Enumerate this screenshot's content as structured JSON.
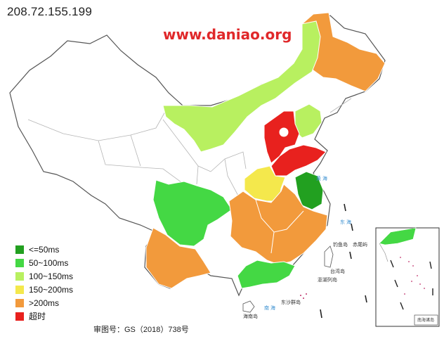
{
  "header": {
    "ip_address": "208.72.155.199",
    "watermark": "www.daniao.org"
  },
  "legend": {
    "items": [
      {
        "label": "<=50ms",
        "color": "#22a020"
      },
      {
        "label": "50~100ms",
        "color": "#44d844"
      },
      {
        "label": "100~150ms",
        "color": "#b8f060"
      },
      {
        "label": "150~200ms",
        "color": "#f4e84c"
      },
      {
        "label": ">200ms",
        "color": "#f29a3c"
      },
      {
        "label": "超时",
        "color": "#e8211e"
      }
    ]
  },
  "footer": {
    "review_number": "审图号：GS（2018）738号"
  },
  "map_labels": {
    "sea_yellow": "黄 海",
    "sea_east": "东 海",
    "sea_south": "南 海",
    "diaoyu": "钓鱼岛",
    "chiwei": "赤尾屿",
    "taiwan": "台湾岛",
    "penghu": "澎湖列岛",
    "dongsha": "东沙群岛",
    "hainan": "海南岛",
    "south_sea_islands": "南海诸岛"
  },
  "region_levels": {
    "heilongjiang": ">200ms",
    "inner_mongolia": "100~150ms",
    "liaoning": "100~150ms",
    "hebei_beijing": "超时",
    "shandong": "超时",
    "henan": "150~200ms",
    "jiangsu": "<=50ms",
    "sichuan": "50~100ms",
    "yunnan": ">200ms",
    "central_south": ">200ms",
    "guangdong": "50~100ms"
  }
}
